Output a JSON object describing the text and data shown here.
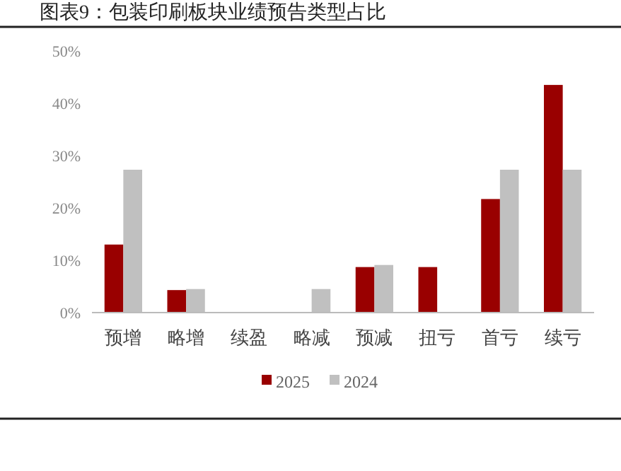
{
  "chart_data": {
    "type": "bar",
    "title": "图表9：包装印刷板块业绩预告类型占比",
    "categories": [
      "预增",
      "略增",
      "续盈",
      "略减",
      "预减",
      "扭亏",
      "首亏",
      "续亏"
    ],
    "series": [
      {
        "name": "2025",
        "color": "#990000",
        "values": [
          13.0,
          4.3,
          0,
          0,
          8.7,
          8.7,
          21.7,
          43.5
        ]
      },
      {
        "name": "2024",
        "color": "#c0c0c0",
        "values": [
          27.3,
          4.5,
          0,
          4.5,
          9.1,
          0,
          27.3,
          27.3
        ]
      }
    ],
    "ylim": [
      0,
      50
    ],
    "yticks": [
      {
        "value": 0,
        "label": "0%"
      },
      {
        "value": 10,
        "label": "10%"
      },
      {
        "value": 20,
        "label": "20%"
      },
      {
        "value": 30,
        "label": "30%"
      },
      {
        "value": 40,
        "label": "40%"
      },
      {
        "value": 50,
        "label": "50%"
      }
    ],
    "grid": false,
    "legend": "bottom"
  }
}
